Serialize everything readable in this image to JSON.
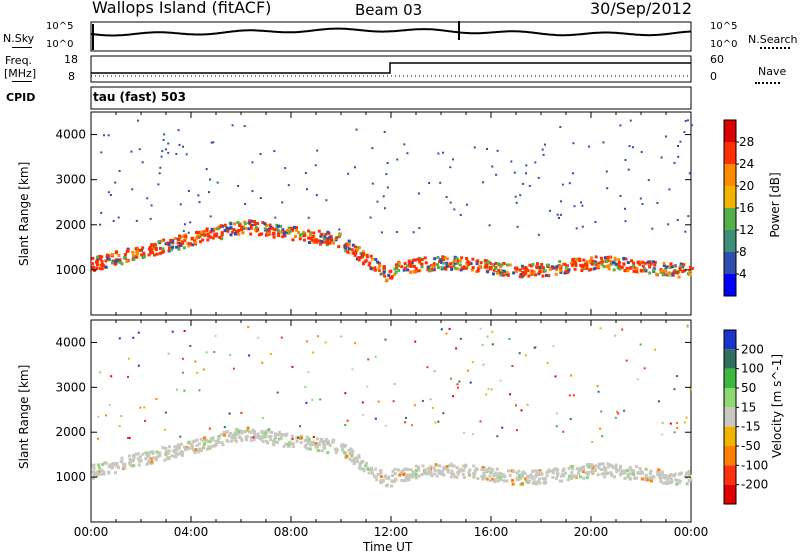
{
  "header": {
    "station": "Wallops Island (fitACF)",
    "beam": "Beam 03",
    "date": "30/Sep/2012"
  },
  "status_panel": {
    "left_label_top": "N.Sky",
    "right_label_top": "N.Search",
    "left_ticks_top": [
      "10^5",
      "10^0"
    ],
    "right_ticks_top": [
      "10^5",
      "10^0"
    ],
    "left_label_bottom": [
      "Freq.",
      "[MHz]"
    ],
    "right_label_bottom": "Nave",
    "left_ticks_bottom": [
      "18",
      "8"
    ],
    "right_ticks_bottom": [
      "60",
      "0"
    ],
    "cpid_label": "CPID",
    "cpid_value": "tau (fast) 503"
  },
  "chart_data": [
    {
      "type": "heatmap",
      "name": "Power",
      "ylabel": "Slant Range [km]",
      "xlabel": "Time UT",
      "x_range_hours": [
        0,
        24
      ],
      "ylim": [
        0,
        4500
      ],
      "y_ticks": [
        1000,
        2000,
        3000,
        4000
      ],
      "colorbar": {
        "label": "Power [dB]",
        "ticks": [
          "4",
          "8",
          "12",
          "16",
          "20",
          "24",
          "28"
        ],
        "colors": [
          "#0000ff",
          "#2e4fb0",
          "#3e8f7a",
          "#55b04a",
          "#f0b400",
          "#ff8a00",
          "#ff3000",
          "#d80000"
        ]
      }
    },
    {
      "type": "heatmap",
      "name": "Velocity",
      "ylabel": "Slant Range [km]",
      "xlabel": "Time UT",
      "x_range_hours": [
        0,
        24
      ],
      "ylim": [
        0,
        4500
      ],
      "y_ticks": [
        1000,
        2000,
        3000,
        4000
      ],
      "colorbar": {
        "label": "Velocity [m s^-1]",
        "ticks": [
          "200",
          "100",
          "50",
          "15",
          "-15",
          "-50",
          "-100",
          "-200"
        ],
        "colors": [
          "#1a35c8",
          "#2e6f60",
          "#3cb83c",
          "#8cd873",
          "#c8c8c0",
          "#f0b400",
          "#ff8000",
          "#ff3010",
          "#e00000"
        ]
      }
    }
  ],
  "x_axis": {
    "tick_labels": [
      "00:00",
      "04:00",
      "08:00",
      "12:00",
      "16:00",
      "20:00",
      "00:00"
    ],
    "label": "Time UT"
  }
}
